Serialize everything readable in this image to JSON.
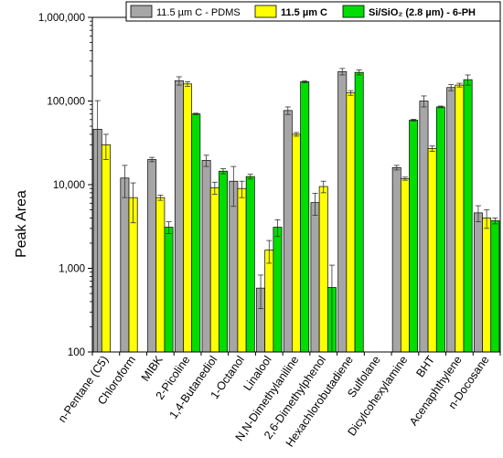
{
  "chart_data": {
    "type": "bar",
    "ylabel": "Peak Area",
    "xlabel": "",
    "yscale": "log",
    "ylim": [
      100,
      1000000
    ],
    "yticks": [
      100,
      1000,
      10000,
      100000,
      1000000
    ],
    "ytick_labels": [
      "100",
      "1,000",
      "10,000",
      "100,000",
      "1,000,000"
    ],
    "legend_position": "top-right",
    "grid": false,
    "categories": [
      "n-Pentane (C5)",
      "Chloroform",
      "MIBK",
      "2-Picoline",
      "1,4-Butanediol",
      "1-Octanol",
      "Linalool",
      "N,N-Dimethylaniline",
      "2,6-Dimethylphenol",
      "Hexachlorobutadiene",
      "Sulfolane",
      "Dicylcohexylamine",
      "BHT",
      "Acenaphthylene",
      "n-Docosane"
    ],
    "series": [
      {
        "name": "11.5 µm C - PDMS",
        "color": "#a6a6a6",
        "values": [
          46000,
          12000,
          20000,
          175000,
          19500,
          11000,
          580,
          77000,
          6100,
          225000,
          null,
          16000,
          100000,
          145000,
          4600
        ],
        "errors": [
          55000,
          5000,
          1200,
          20000,
          3000,
          5500,
          250,
          8000,
          1800,
          20000,
          null,
          1000,
          15000,
          12000,
          1000
        ]
      },
      {
        "name": "11.5 µm C",
        "color": "#ffff00",
        "values": [
          30000,
          7000,
          7000,
          160000,
          9200,
          9000,
          1650,
          40000,
          9500,
          125000,
          null,
          11800,
          27000,
          155000,
          4000
        ],
        "errors": [
          10000,
          3500,
          500,
          10000,
          1500,
          2000,
          500,
          2000,
          1500,
          8000,
          null,
          500,
          2000,
          8000,
          1000
        ]
      },
      {
        "name": "Si/SiO₂ (2.8 µm) - 6-PH",
        "color": "#00dd00",
        "values": [
          null,
          null,
          3100,
          70000,
          14500,
          12500,
          3100,
          170000,
          590,
          220000,
          null,
          59000,
          85000,
          180000,
          3700
        ],
        "errors": [
          null,
          null,
          500,
          1500,
          1000,
          800,
          700,
          5000,
          500,
          15000,
          null,
          1500,
          2000,
          25000,
          300
        ]
      }
    ]
  },
  "legend": {
    "items": [
      {
        "label": "11.5 µm C - PDMS",
        "bold": false
      },
      {
        "label": "11.5 µm C",
        "bold": true
      },
      {
        "label": "Si/SiO₂ (2.8 µm) - 6-PH",
        "bold": true
      }
    ]
  }
}
